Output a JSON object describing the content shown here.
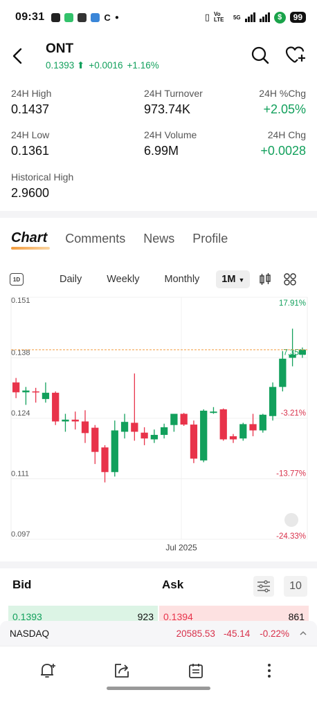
{
  "status": {
    "time": "09:31",
    "battery": "99",
    "network": "5G",
    "volte": "Vo LTE"
  },
  "header": {
    "symbol": "ONT",
    "price": "0.1393",
    "change": "+0.0016",
    "change_pct": "+1.16%"
  },
  "stats": {
    "high_label": "24H High",
    "high": "0.1437",
    "turnover_label": "24H Turnover",
    "turnover": "973.74K",
    "pctchg_label": "24H %Chg",
    "pctchg": "+2.05%",
    "low_label": "24H Low",
    "low": "0.1361",
    "volume_label": "24H Volume",
    "volume": "6.99M",
    "chg_label": "24H Chg",
    "chg": "+0.0028",
    "hist_label": "Historical High",
    "hist": "2.9600"
  },
  "tabs": [
    "Chart",
    "Comments",
    "News",
    "Profile"
  ],
  "periods": {
    "oned": "1D",
    "daily": "Daily",
    "weekly": "Weekly",
    "monthly": "Monthly",
    "selected": "1M"
  },
  "chart_data": {
    "type": "candlestick",
    "ylim": [
      0.097,
      0.151
    ],
    "y_ticks": [
      "0.151",
      "0.138",
      "0.124",
      "0.111",
      "0.097"
    ],
    "right_ticks": [
      "17.91%",
      "7.35%",
      "-3.21%",
      "-13.77%",
      "-24.33%"
    ],
    "x_label": "Jul 2025",
    "last_price_line": 0.1393,
    "candles": [
      {
        "o": 0.132,
        "h": 0.133,
        "l": 0.1285,
        "c": 0.1298
      },
      {
        "o": 0.1298,
        "h": 0.131,
        "l": 0.127,
        "c": 0.1302
      },
      {
        "o": 0.13,
        "h": 0.1308,
        "l": 0.1275,
        "c": 0.1298
      },
      {
        "o": 0.1283,
        "h": 0.132,
        "l": 0.1275,
        "c": 0.1297
      },
      {
        "o": 0.1297,
        "h": 0.13,
        "l": 0.1225,
        "c": 0.1233
      },
      {
        "o": 0.1233,
        "h": 0.125,
        "l": 0.121,
        "c": 0.1237
      },
      {
        "o": 0.1237,
        "h": 0.1255,
        "l": 0.1215,
        "c": 0.1233
      },
      {
        "o": 0.1233,
        "h": 0.1258,
        "l": 0.1185,
        "c": 0.1207
      },
      {
        "o": 0.1219,
        "h": 0.1225,
        "l": 0.1138,
        "c": 0.1165
      },
      {
        "o": 0.1175,
        "h": 0.118,
        "l": 0.1097,
        "c": 0.112
      },
      {
        "o": 0.112,
        "h": 0.1235,
        "l": 0.111,
        "c": 0.1213
      },
      {
        "o": 0.121,
        "h": 0.125,
        "l": 0.1195,
        "c": 0.1232
      },
      {
        "o": 0.123,
        "h": 0.134,
        "l": 0.119,
        "c": 0.121
      },
      {
        "o": 0.1208,
        "h": 0.122,
        "l": 0.118,
        "c": 0.1195
      },
      {
        "o": 0.1193,
        "h": 0.1215,
        "l": 0.1185,
        "c": 0.1203
      },
      {
        "o": 0.1203,
        "h": 0.1228,
        "l": 0.1195,
        "c": 0.122
      },
      {
        "o": 0.1225,
        "h": 0.125,
        "l": 0.121,
        "c": 0.125
      },
      {
        "o": 0.125,
        "h": 0.1252,
        "l": 0.1223,
        "c": 0.1226
      },
      {
        "o": 0.1226,
        "h": 0.1235,
        "l": 0.114,
        "c": 0.115
      },
      {
        "o": 0.1146,
        "h": 0.126,
        "l": 0.1142,
        "c": 0.1257
      },
      {
        "o": 0.1252,
        "h": 0.1265,
        "l": 0.125,
        "c": 0.1255
      },
      {
        "o": 0.126,
        "h": 0.1262,
        "l": 0.119,
        "c": 0.1193
      },
      {
        "o": 0.12,
        "h": 0.1205,
        "l": 0.1185,
        "c": 0.1193
      },
      {
        "o": 0.1195,
        "h": 0.123,
        "l": 0.119,
        "c": 0.1227
      },
      {
        "o": 0.1227,
        "h": 0.125,
        "l": 0.12,
        "c": 0.1213
      },
      {
        "o": 0.1213,
        "h": 0.125,
        "l": 0.1208,
        "c": 0.1248
      },
      {
        "o": 0.1245,
        "h": 0.132,
        "l": 0.1235,
        "c": 0.131
      },
      {
        "o": 0.131,
        "h": 0.139,
        "l": 0.13,
        "c": 0.1373
      },
      {
        "o": 0.1375,
        "h": 0.144,
        "l": 0.1356,
        "c": 0.1382
      },
      {
        "o": 0.1382,
        "h": 0.1398,
        "l": 0.1375,
        "c": 0.1393
      }
    ]
  },
  "bidask": {
    "bid_label": "Bid",
    "ask_label": "Ask",
    "depth": "10",
    "bid_price": "0.1393",
    "bid_qty": "923",
    "ask_price": "0.1394",
    "ask_qty": "861"
  },
  "ticker": {
    "name": "NASDAQ",
    "value": "20585.53",
    "change": "-45.14",
    "pct": "-0.22%"
  },
  "colors": {
    "up": "#12a05c",
    "down": "#e8334a",
    "accent": "#f39b3c"
  }
}
